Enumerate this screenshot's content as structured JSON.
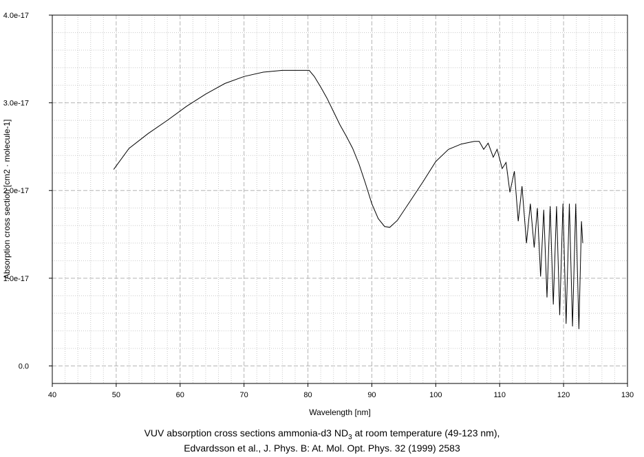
{
  "chart_data": {
    "type": "line",
    "xlabel": "Wavelength [nm]",
    "ylabel": "Absorption cross section [cm2 · molecule-1]",
    "xlim": [
      40,
      130
    ],
    "ylim": [
      0,
      4e-17
    ],
    "x_ticks": [
      "40",
      "50",
      "60",
      "70",
      "80",
      "90",
      "100",
      "110",
      "120",
      "130"
    ],
    "y_ticks": [
      "0.0",
      "1.0e-17",
      "2.0e-17",
      "3.0e-17",
      "4.0e-17"
    ],
    "grid": true,
    "series": [
      {
        "x": [
          49.6,
          52,
          55,
          58,
          61,
          64,
          67,
          70,
          73,
          76,
          79,
          80.2,
          81,
          82,
          83,
          84,
          85,
          86,
          87,
          88,
          89,
          90,
          91,
          92,
          92.8,
          94,
          96,
          98,
          100,
          102,
          104,
          106,
          106.8,
          107.5,
          108.2,
          109,
          109.6,
          110.4,
          111,
          111.6,
          112.3,
          112.9,
          113.5,
          114.2,
          114.8,
          115.4,
          115.9,
          116.4,
          116.9,
          117.4,
          117.9,
          118.4,
          118.9,
          119.4,
          119.9,
          120.4,
          120.9,
          121.4,
          121.9,
          122.4,
          122.8,
          123.0
        ],
        "y": [
          2.24e-17,
          2.48e-17,
          2.65e-17,
          2.8e-17,
          2.96e-17,
          3.1e-17,
          3.22e-17,
          3.3e-17,
          3.35e-17,
          3.37e-17,
          3.37e-17,
          3.37e-17,
          3.3e-17,
          3.18e-17,
          3.05e-17,
          2.9e-17,
          2.75e-17,
          2.62e-17,
          2.48e-17,
          2.3e-17,
          2.08e-17,
          1.85e-17,
          1.68e-17,
          1.59e-17,
          1.58e-17,
          1.66e-17,
          1.88e-17,
          2.1e-17,
          2.33e-17,
          2.47e-17,
          2.53e-17,
          2.56e-17,
          2.56e-17,
          2.47e-17,
          2.54e-17,
          2.38e-17,
          2.47e-17,
          2.25e-17,
          2.32e-17,
          1.98e-17,
          2.22e-17,
          1.65e-17,
          2.05e-17,
          1.4e-17,
          1.85e-17,
          1.35e-17,
          1.8e-17,
          1.02e-17,
          1.78e-17,
          7.8e-18,
          1.82e-17,
          7e-18,
          1.82e-17,
          5.8e-18,
          1.85e-17,
          4.8e-18,
          1.85e-17,
          4.5e-18,
          1.85e-17,
          4.2e-18,
          1.65e-17,
          1.4e-17
        ]
      }
    ]
  },
  "caption": {
    "line1_pre": "VUV absorption cross sections ammonia-d3 ND",
    "line1_sub": "3",
    "line1_post": " at room temperature (49-123 nm),",
    "line2": "Edvardsson et al., J. Phys. B: At. Mol. Opt. Phys. 32 (1999) 2583"
  }
}
